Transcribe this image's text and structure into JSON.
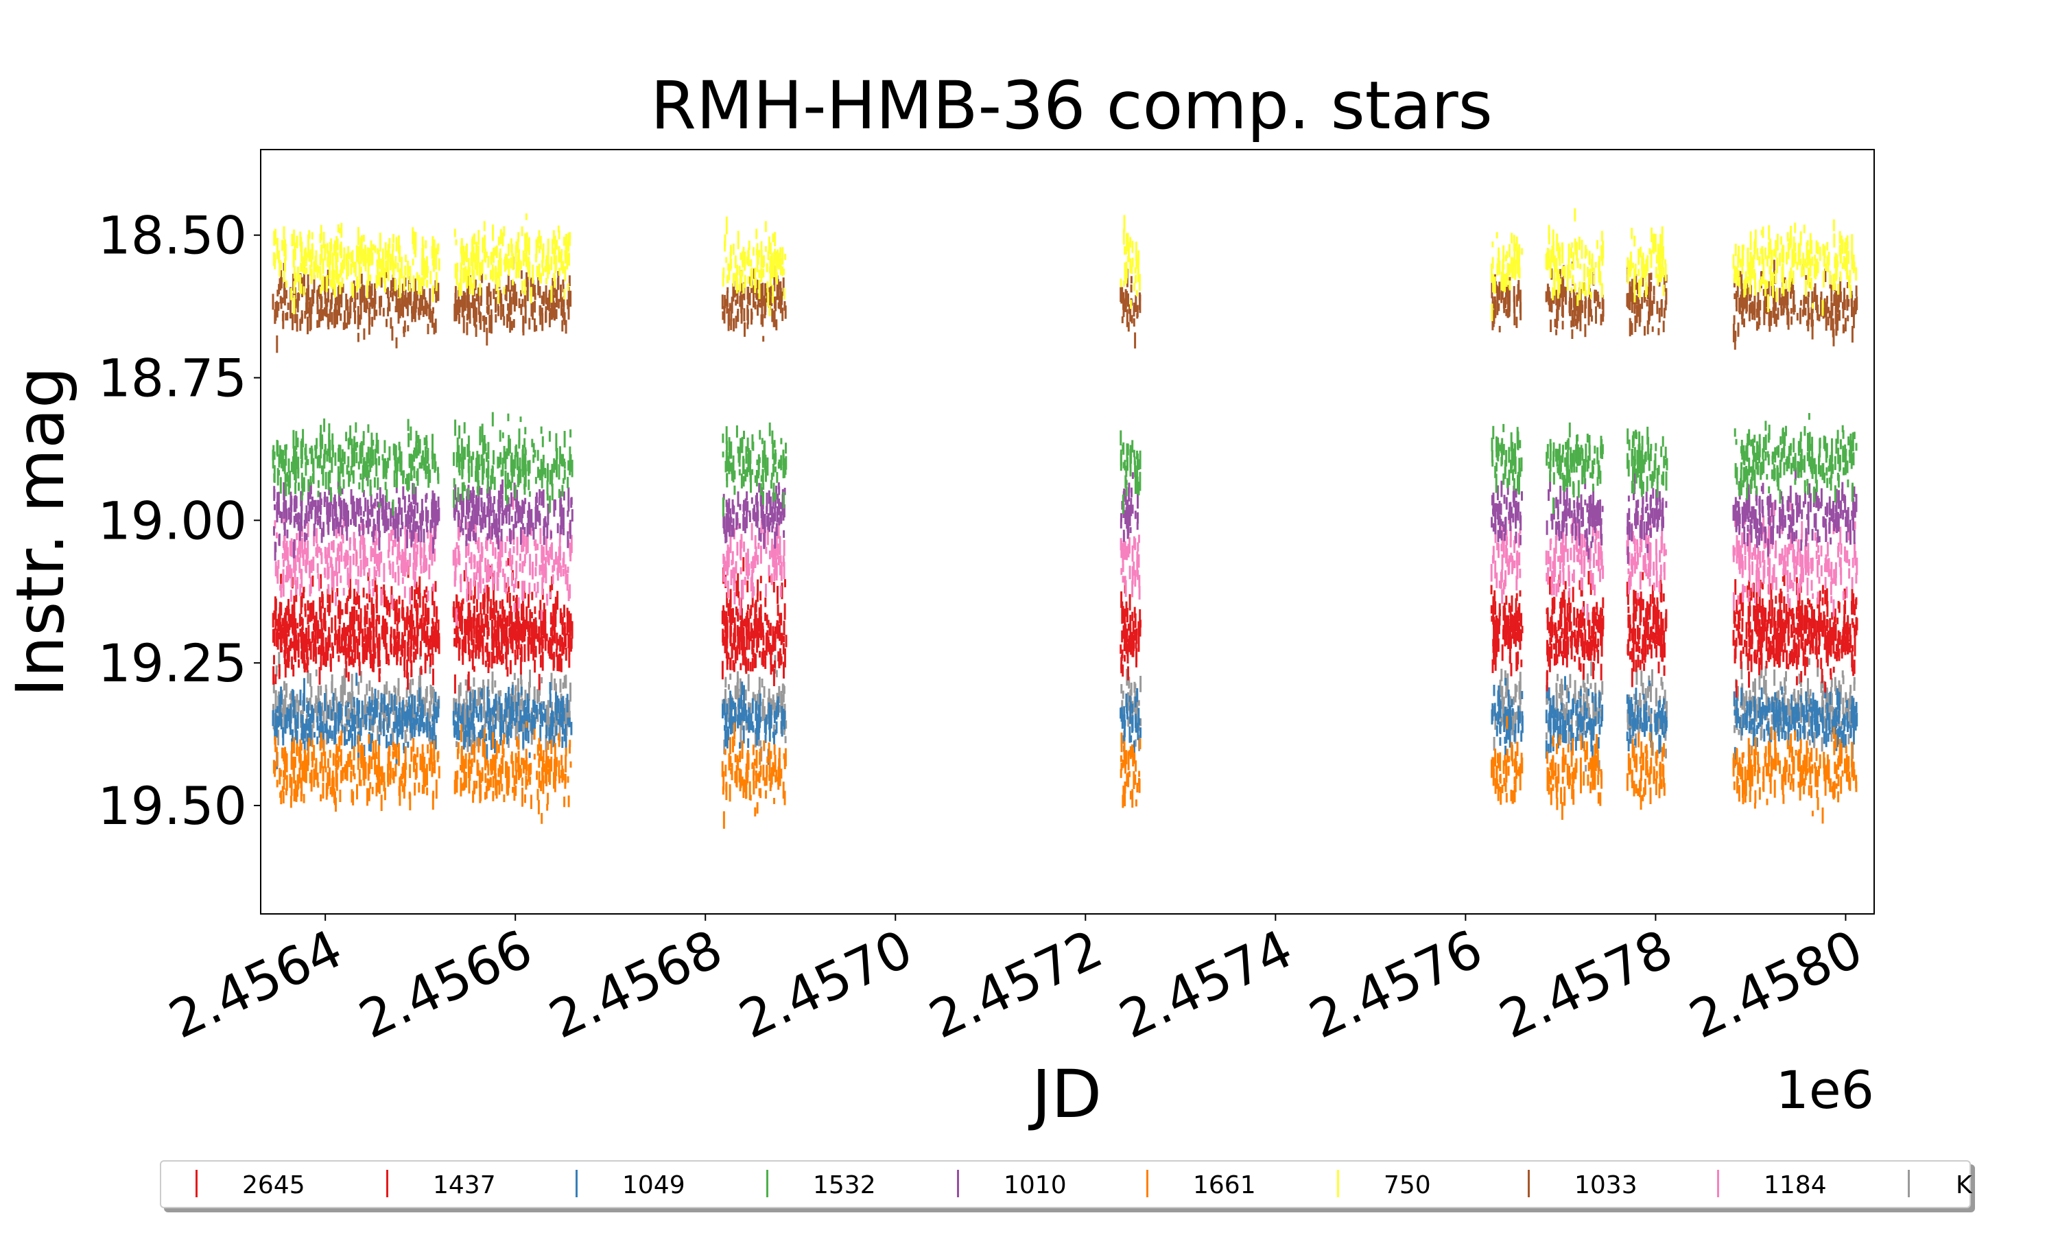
{
  "chart_data": {
    "type": "scatter",
    "title": "RMH-HMB-36 comp. stars",
    "xlabel": "JD",
    "ylabel": "Instr. mag",
    "x_offset_label": "1e6",
    "x_ticks": [
      "2.4564",
      "2.4566",
      "2.4568",
      "2.4570",
      "2.4572",
      "2.4574",
      "2.4576",
      "2.4578",
      "2.4580"
    ],
    "y_ticks": [
      "18.50",
      "18.75",
      "19.00",
      "19.25",
      "19.50"
    ],
    "xlim": [
      2456332,
      2458030
    ],
    "ylim": [
      19.69,
      18.35
    ],
    "y_inverted": true,
    "grid": false,
    "legend_position": "below",
    "observing_windows": [
      {
        "start": 2456345,
        "end": 2456520,
        "flag": true
      },
      {
        "start": 2456535,
        "end": 2456660,
        "flag": false
      },
      {
        "start": 2456818,
        "end": 2456885,
        "flag": false
      },
      {
        "start": 2457237,
        "end": 2457258,
        "flag": true
      },
      {
        "start": 2457627,
        "end": 2457660,
        "flag": false
      },
      {
        "start": 2457685,
        "end": 2457745,
        "flag": true
      },
      {
        "start": 2457770,
        "end": 2457812,
        "flag": false
      },
      {
        "start": 2457882,
        "end": 2458012,
        "flag": false
      }
    ],
    "series": [
      {
        "name": "2645",
        "color": "#e41a1c",
        "mean_mag": 19.21,
        "scatter": 0.06
      },
      {
        "name": "1437",
        "color": "#e41a1c",
        "mean_mag": 19.18,
        "scatter": 0.08
      },
      {
        "name": "1049",
        "color": "#377eb8",
        "mean_mag": 19.35,
        "scatter": 0.05
      },
      {
        "name": "1532",
        "color": "#4daf4a",
        "mean_mag": 18.9,
        "scatter": 0.06
      },
      {
        "name": "1010",
        "color": "#984ea3",
        "mean_mag": 18.99,
        "scatter": 0.05
      },
      {
        "name": "1661",
        "color": "#ff7f00",
        "mean_mag": 19.44,
        "scatter": 0.06
      },
      {
        "name": "750",
        "color": "#ffff33",
        "mean_mag": 18.55,
        "scatter": 0.06
      },
      {
        "name": "1033",
        "color": "#a65628",
        "mean_mag": 18.62,
        "scatter": 0.05
      },
      {
        "name": "1184",
        "color": "#f781bf",
        "mean_mag": 19.07,
        "scatter": 0.07
      },
      {
        "name": "K",
        "color": "#999999",
        "mean_mag": 19.33,
        "scatter": 0.06
      }
    ]
  }
}
